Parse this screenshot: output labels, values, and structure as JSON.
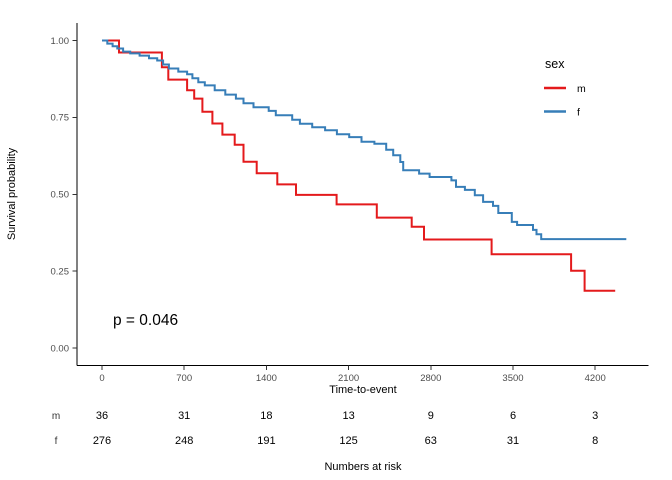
{
  "chart": {
    "p_value_label": "p = 0.046",
    "legend": {
      "title": "sex",
      "items": [
        {
          "label": "m",
          "color": "#e41a1c"
        },
        {
          "label": "f",
          "color": "#377eb8"
        }
      ]
    },
    "colors": {
      "male": "#e41a1c",
      "female": "#377eb8",
      "axis": "#000000",
      "tick_text": "#4d4d4d"
    }
  },
  "chart_data": {
    "type": "line",
    "variant": "kaplan-meier-step",
    "title": "",
    "xlabel": "Time-to-event",
    "ylabel": "Survival probability",
    "xticks": [
      0,
      700,
      1400,
      2100,
      2800,
      3500,
      4200
    ],
    "yticks": [
      {
        "label": "0.00",
        "value": 0.0
      },
      {
        "label": "0.25",
        "value": 0.25
      },
      {
        "label": "0.50",
        "value": 0.5
      },
      {
        "label": "0.75",
        "value": 0.75
      },
      {
        "label": "1.00",
        "value": 1.0
      }
    ],
    "xlim": [
      -210,
      4650
    ],
    "ylim": [
      0,
      1.06
    ],
    "grid": false,
    "legend_position": "right",
    "annotations": [
      {
        "text": "p = 0.046",
        "x": 420,
        "y": 0.075
      }
    ],
    "series": [
      {
        "name": "m",
        "color": "#e41a1c",
        "points": [
          [
            0,
            1.0
          ],
          [
            145,
            0.961
          ],
          [
            510,
            0.913
          ],
          [
            565,
            0.873
          ],
          [
            725,
            0.838
          ],
          [
            785,
            0.811
          ],
          [
            855,
            0.768
          ],
          [
            940,
            0.73
          ],
          [
            1025,
            0.694
          ],
          [
            1130,
            0.661
          ],
          [
            1205,
            0.606
          ],
          [
            1317,
            0.568
          ],
          [
            1493,
            0.532
          ],
          [
            1652,
            0.498
          ],
          [
            1998,
            0.467
          ],
          [
            2340,
            0.424
          ],
          [
            2637,
            0.394
          ],
          [
            2742,
            0.353
          ],
          [
            3318,
            0.305
          ],
          [
            3995,
            0.251
          ],
          [
            4110,
            0.186
          ],
          [
            4370,
            0.186
          ]
        ]
      },
      {
        "name": "f",
        "color": "#377eb8",
        "points": [
          [
            0,
            1.0
          ],
          [
            45,
            0.99
          ],
          [
            90,
            0.981
          ],
          [
            130,
            0.974
          ],
          [
            180,
            0.964
          ],
          [
            240,
            0.958
          ],
          [
            320,
            0.951
          ],
          [
            400,
            0.942
          ],
          [
            470,
            0.935
          ],
          [
            520,
            0.922
          ],
          [
            570,
            0.909
          ],
          [
            650,
            0.899
          ],
          [
            725,
            0.89
          ],
          [
            770,
            0.877
          ],
          [
            820,
            0.864
          ],
          [
            875,
            0.854
          ],
          [
            960,
            0.838
          ],
          [
            1050,
            0.824
          ],
          [
            1140,
            0.811
          ],
          [
            1205,
            0.796
          ],
          [
            1290,
            0.783
          ],
          [
            1420,
            0.771
          ],
          [
            1480,
            0.757
          ],
          [
            1620,
            0.742
          ],
          [
            1685,
            0.729
          ],
          [
            1790,
            0.718
          ],
          [
            1900,
            0.708
          ],
          [
            2000,
            0.695
          ],
          [
            2105,
            0.686
          ],
          [
            2210,
            0.671
          ],
          [
            2320,
            0.664
          ],
          [
            2420,
            0.645
          ],
          [
            2480,
            0.627
          ],
          [
            2540,
            0.605
          ],
          [
            2565,
            0.578
          ],
          [
            2700,
            0.567
          ],
          [
            2790,
            0.556
          ],
          [
            2975,
            0.545
          ],
          [
            3015,
            0.524
          ],
          [
            3090,
            0.514
          ],
          [
            3175,
            0.497
          ],
          [
            3245,
            0.475
          ],
          [
            3330,
            0.462
          ],
          [
            3375,
            0.439
          ],
          [
            3490,
            0.41
          ],
          [
            3535,
            0.4
          ],
          [
            3670,
            0.384
          ],
          [
            3700,
            0.37
          ],
          [
            3740,
            0.354
          ],
          [
            4465,
            0.354
          ]
        ]
      }
    ],
    "risk_table": {
      "title": "Numbers at risk",
      "times": [
        0,
        700,
        1400,
        2100,
        2800,
        3500,
        4200
      ],
      "rows": [
        {
          "name": "m",
          "values": [
            36,
            31,
            18,
            13,
            9,
            6,
            3
          ]
        },
        {
          "name": "f",
          "values": [
            276,
            248,
            191,
            125,
            63,
            31,
            8
          ]
        }
      ]
    }
  }
}
